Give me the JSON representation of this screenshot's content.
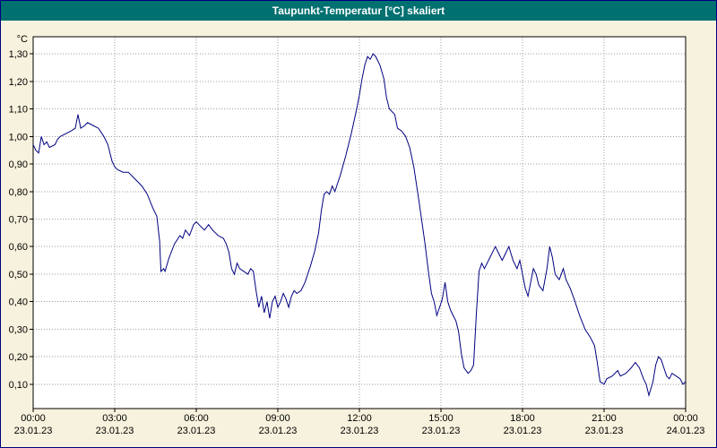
{
  "window": {
    "title": "Taupunkt-Temperatur [°C] skaliert"
  },
  "theme": {
    "background": "#f7f2dd",
    "titlebar": "#007070",
    "titlebar_text": "#ffffff",
    "border": "#000080"
  },
  "chart_data": {
    "type": "line",
    "title": "Taupunkt-Temperatur [°C] skaliert",
    "xlabel": "",
    "ylabel": "°C",
    "grid": true,
    "legend": "none",
    "ylim": [
      0.012,
      1.362
    ],
    "xlim_hours": [
      0,
      24
    ],
    "y_ticks": [
      1.3,
      1.2,
      1.1,
      1.0,
      0.9,
      0.8,
      0.7,
      0.6,
      0.5,
      0.4,
      0.3,
      0.2,
      0.1
    ],
    "y_tick_labels": [
      "1,30",
      "1,20",
      "1,10",
      "1,00",
      "0,90",
      "0,80",
      "0,70",
      "0,60",
      "0,50",
      "0,40",
      "0,30",
      "0,20",
      "0,10"
    ],
    "x_ticks": [
      {
        "hour": 0,
        "time": "00:00",
        "date": "23.01.23"
      },
      {
        "hour": 3,
        "time": "03:00",
        "date": "23.01.23"
      },
      {
        "hour": 6,
        "time": "06:00",
        "date": "23.01.23"
      },
      {
        "hour": 9,
        "time": "09:00",
        "date": "23.01.23"
      },
      {
        "hour": 12,
        "time": "12:00",
        "date": "23.01.23"
      },
      {
        "hour": 15,
        "time": "15:00",
        "date": "23.01.23"
      },
      {
        "hour": 18,
        "time": "18:00",
        "date": "23.01.23"
      },
      {
        "hour": 21,
        "time": "21:00",
        "date": "23.01.23"
      },
      {
        "hour": 24,
        "time": "00:00",
        "date": "24.01.23"
      }
    ],
    "colors": {
      "plot_bg": "#ffffff",
      "grid": "#9c9c9c",
      "axis": "#000000",
      "line": "#000080"
    },
    "series": [
      {
        "name": "Taupunkt-Temperatur [°C] skaliert",
        "points": [
          [
            0,
            0.97
          ],
          [
            0.1,
            0.95
          ],
          [
            0.2,
            0.94
          ],
          [
            0.3,
            1.0
          ],
          [
            0.4,
            0.97
          ],
          [
            0.5,
            0.98
          ],
          [
            0.6,
            0.96
          ],
          [
            0.8,
            0.97
          ],
          [
            0.9,
            0.99
          ],
          [
            1.0,
            1.0
          ],
          [
            1.2,
            1.01
          ],
          [
            1.4,
            1.02
          ],
          [
            1.55,
            1.03
          ],
          [
            1.65,
            1.08
          ],
          [
            1.75,
            1.03
          ],
          [
            1.9,
            1.04
          ],
          [
            2.0,
            1.05
          ],
          [
            2.2,
            1.04
          ],
          [
            2.4,
            1.03
          ],
          [
            2.6,
            1.0
          ],
          [
            2.75,
            0.97
          ],
          [
            2.9,
            0.91
          ],
          [
            3.0,
            0.89
          ],
          [
            3.1,
            0.88
          ],
          [
            3.3,
            0.87
          ],
          [
            3.5,
            0.87
          ],
          [
            3.7,
            0.85
          ],
          [
            3.9,
            0.83
          ],
          [
            4.0,
            0.82
          ],
          [
            4.2,
            0.79
          ],
          [
            4.4,
            0.74
          ],
          [
            4.55,
            0.71
          ],
          [
            4.65,
            0.62
          ],
          [
            4.7,
            0.51
          ],
          [
            4.8,
            0.52
          ],
          [
            4.85,
            0.51
          ],
          [
            5.0,
            0.56
          ],
          [
            5.2,
            0.61
          ],
          [
            5.4,
            0.64
          ],
          [
            5.5,
            0.63
          ],
          [
            5.6,
            0.66
          ],
          [
            5.75,
            0.64
          ],
          [
            5.9,
            0.68
          ],
          [
            6.0,
            0.69
          ],
          [
            6.1,
            0.68
          ],
          [
            6.3,
            0.66
          ],
          [
            6.45,
            0.68
          ],
          [
            6.6,
            0.66
          ],
          [
            6.8,
            0.64
          ],
          [
            7.0,
            0.63
          ],
          [
            7.1,
            0.61
          ],
          [
            7.2,
            0.58
          ],
          [
            7.3,
            0.52
          ],
          [
            7.4,
            0.5
          ],
          [
            7.5,
            0.54
          ],
          [
            7.6,
            0.52
          ],
          [
            7.75,
            0.51
          ],
          [
            7.9,
            0.5
          ],
          [
            8.0,
            0.52
          ],
          [
            8.1,
            0.51
          ],
          [
            8.2,
            0.44
          ],
          [
            8.3,
            0.38
          ],
          [
            8.4,
            0.42
          ],
          [
            8.5,
            0.36
          ],
          [
            8.6,
            0.4
          ],
          [
            8.7,
            0.34
          ],
          [
            8.8,
            0.4
          ],
          [
            8.9,
            0.42
          ],
          [
            9.0,
            0.38
          ],
          [
            9.1,
            0.4
          ],
          [
            9.2,
            0.43
          ],
          [
            9.3,
            0.41
          ],
          [
            9.4,
            0.38
          ],
          [
            9.5,
            0.42
          ],
          [
            9.6,
            0.44
          ],
          [
            9.7,
            0.43
          ],
          [
            9.85,
            0.44
          ],
          [
            10.0,
            0.47
          ],
          [
            10.2,
            0.53
          ],
          [
            10.35,
            0.58
          ],
          [
            10.5,
            0.65
          ],
          [
            10.6,
            0.73
          ],
          [
            10.7,
            0.79
          ],
          [
            10.8,
            0.8
          ],
          [
            10.9,
            0.79
          ],
          [
            11.0,
            0.82
          ],
          [
            11.1,
            0.8
          ],
          [
            11.2,
            0.83
          ],
          [
            11.3,
            0.86
          ],
          [
            11.5,
            0.93
          ],
          [
            11.7,
            1.01
          ],
          [
            11.9,
            1.1
          ],
          [
            12.0,
            1.15
          ],
          [
            12.1,
            1.21
          ],
          [
            12.2,
            1.26
          ],
          [
            12.3,
            1.29
          ],
          [
            12.4,
            1.28
          ],
          [
            12.5,
            1.3
          ],
          [
            12.6,
            1.29
          ],
          [
            12.75,
            1.26
          ],
          [
            12.9,
            1.21
          ],
          [
            13.0,
            1.14
          ],
          [
            13.1,
            1.1
          ],
          [
            13.3,
            1.08
          ],
          [
            13.4,
            1.03
          ],
          [
            13.55,
            1.02
          ],
          [
            13.7,
            1.0
          ],
          [
            13.85,
            0.96
          ],
          [
            14.0,
            0.89
          ],
          [
            14.2,
            0.76
          ],
          [
            14.4,
            0.62
          ],
          [
            14.55,
            0.5
          ],
          [
            14.65,
            0.43
          ],
          [
            14.75,
            0.4
          ],
          [
            14.85,
            0.35
          ],
          [
            14.95,
            0.38
          ],
          [
            15.05,
            0.41
          ],
          [
            15.15,
            0.47
          ],
          [
            15.25,
            0.4
          ],
          [
            15.35,
            0.37
          ],
          [
            15.45,
            0.35
          ],
          [
            15.55,
            0.33
          ],
          [
            15.65,
            0.29
          ],
          [
            15.75,
            0.21
          ],
          [
            15.85,
            0.16
          ],
          [
            16.0,
            0.14
          ],
          [
            16.1,
            0.15
          ],
          [
            16.2,
            0.17
          ],
          [
            16.3,
            0.35
          ],
          [
            16.4,
            0.51
          ],
          [
            16.5,
            0.54
          ],
          [
            16.6,
            0.52
          ],
          [
            16.8,
            0.56
          ],
          [
            17.0,
            0.6
          ],
          [
            17.1,
            0.58
          ],
          [
            17.25,
            0.55
          ],
          [
            17.4,
            0.58
          ],
          [
            17.5,
            0.6
          ],
          [
            17.65,
            0.55
          ],
          [
            17.8,
            0.52
          ],
          [
            17.9,
            0.55
          ],
          [
            18.0,
            0.5
          ],
          [
            18.1,
            0.45
          ],
          [
            18.2,
            0.42
          ],
          [
            18.3,
            0.47
          ],
          [
            18.4,
            0.52
          ],
          [
            18.5,
            0.5
          ],
          [
            18.6,
            0.46
          ],
          [
            18.75,
            0.44
          ],
          [
            18.9,
            0.52
          ],
          [
            19.0,
            0.6
          ],
          [
            19.1,
            0.56
          ],
          [
            19.2,
            0.5
          ],
          [
            19.35,
            0.48
          ],
          [
            19.5,
            0.52
          ],
          [
            19.6,
            0.48
          ],
          [
            19.75,
            0.45
          ],
          [
            19.9,
            0.41
          ],
          [
            20.1,
            0.35
          ],
          [
            20.3,
            0.3
          ],
          [
            20.5,
            0.27
          ],
          [
            20.65,
            0.24
          ],
          [
            20.75,
            0.18
          ],
          [
            20.85,
            0.11
          ],
          [
            21.0,
            0.1
          ],
          [
            21.1,
            0.12
          ],
          [
            21.3,
            0.13
          ],
          [
            21.5,
            0.15
          ],
          [
            21.6,
            0.13
          ],
          [
            21.8,
            0.14
          ],
          [
            22.0,
            0.16
          ],
          [
            22.15,
            0.18
          ],
          [
            22.3,
            0.16
          ],
          [
            22.45,
            0.12
          ],
          [
            22.55,
            0.1
          ],
          [
            22.65,
            0.06
          ],
          [
            22.8,
            0.11
          ],
          [
            22.9,
            0.17
          ],
          [
            23.0,
            0.2
          ],
          [
            23.1,
            0.19
          ],
          [
            23.2,
            0.16
          ],
          [
            23.3,
            0.13
          ],
          [
            23.4,
            0.12
          ],
          [
            23.5,
            0.14
          ],
          [
            23.65,
            0.13
          ],
          [
            23.8,
            0.12
          ],
          [
            23.9,
            0.1
          ],
          [
            24.0,
            0.11
          ]
        ]
      }
    ]
  }
}
